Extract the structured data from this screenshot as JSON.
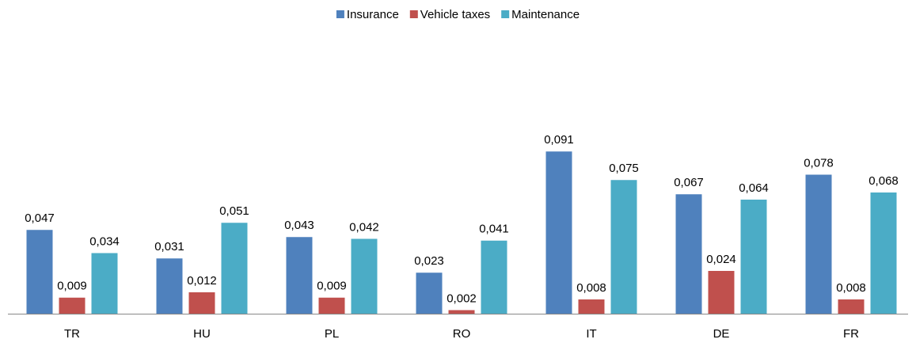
{
  "chart_data": {
    "type": "bar",
    "categories": [
      "TR",
      "HU",
      "PL",
      "RO",
      "IT",
      "DE",
      "FR"
    ],
    "series": [
      {
        "name": "Insurance",
        "color": "#4f81bd",
        "values": [
          0.047,
          0.031,
          0.043,
          0.023,
          0.091,
          0.067,
          0.078
        ],
        "value_labels": [
          "0,047",
          "0,031",
          "0,043",
          "0,023",
          "0,091",
          "0,067",
          "0,078"
        ]
      },
      {
        "name": "Vehicle taxes",
        "color": "#c0504d",
        "values": [
          0.009,
          0.012,
          0.009,
          0.002,
          0.008,
          0.024,
          0.008
        ],
        "value_labels": [
          "0,009",
          "0,012",
          "0,009",
          "0,002",
          "0,008",
          "0,024",
          "0,008"
        ]
      },
      {
        "name": "Maintenance",
        "color": "#4bacc6",
        "values": [
          0.034,
          0.051,
          0.042,
          0.041,
          0.075,
          0.064,
          0.068
        ],
        "value_labels": [
          "0,034",
          "0,051",
          "0,042",
          "0,041",
          "0,075",
          "0,064",
          "0,068"
        ]
      }
    ],
    "ylim": [
      0,
      0.12
    ],
    "legend": "top"
  }
}
